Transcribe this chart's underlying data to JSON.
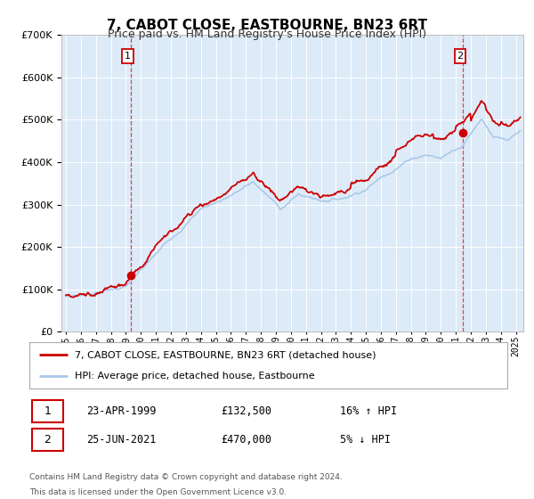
{
  "title": "7, CABOT CLOSE, EASTBOURNE, BN23 6RT",
  "subtitle": "Price paid vs. HM Land Registry's House Price Index (HPI)",
  "legend_line1": "7, CABOT CLOSE, EASTBOURNE, BN23 6RT (detached house)",
  "legend_line2": "HPI: Average price, detached house, Eastbourne",
  "annotation1_date": "23-APR-1999",
  "annotation1_price": "£132,500",
  "annotation1_hpi": "16% ↑ HPI",
  "annotation2_date": "25-JUN-2021",
  "annotation2_price": "£470,000",
  "annotation2_hpi": "5% ↓ HPI",
  "footer1": "Contains HM Land Registry data © Crown copyright and database right 2024.",
  "footer2": "This data is licensed under the Open Government Licence v3.0.",
  "hpi_color": "#a8c8e8",
  "price_color": "#cc0000",
  "marker_color": "#cc0000",
  "vline_color": "#dd4444",
  "plot_bg": "#ddeaf8",
  "grid_color": "#ffffff",
  "fig_bg": "#ffffff",
  "ylim": [
    0,
    700000
  ],
  "yticks": [
    0,
    100000,
    200000,
    300000,
    400000,
    500000,
    600000,
    700000
  ],
  "xlim_start": 1994.7,
  "xlim_end": 2025.5,
  "sale1_x": 1999.31,
  "sale1_y": 132500,
  "sale2_x": 2021.48,
  "sale2_y": 470000
}
